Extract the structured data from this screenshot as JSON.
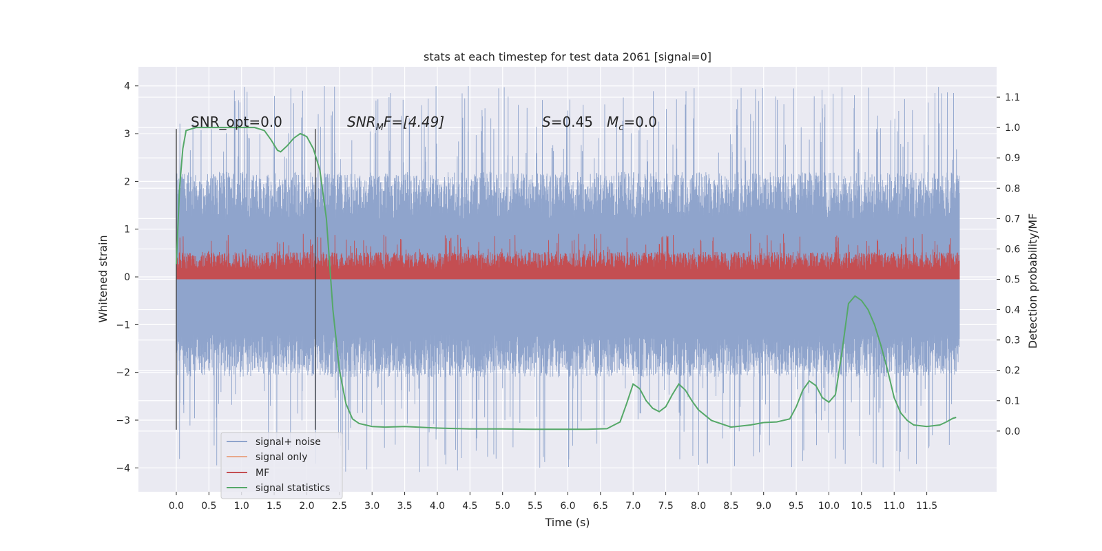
{
  "chart_data": {
    "type": "line",
    "title": "stats at each timestep for test data 2061 [signal=0]",
    "xlabel": "Time (s)",
    "ylabel": "Whitened strain",
    "y2label": "Detection probability/MF",
    "xlim": [
      -0.58,
      12.57
    ],
    "ylim": [
      -4.5,
      4.4
    ],
    "y2lim": [
      -0.2,
      1.2
    ],
    "grid": true,
    "legend_position": "lower-left",
    "x_ticks": [
      "0.0",
      "0.5",
      "1.0",
      "1.5",
      "2.0",
      "2.5",
      "3.0",
      "3.5",
      "4.0",
      "4.5",
      "5.0",
      "5.5",
      "6.0",
      "6.5",
      "7.0",
      "7.5",
      "8.0",
      "8.5",
      "9.0",
      "9.5",
      "10.0",
      "10.5",
      "11.0",
      "11.5"
    ],
    "y_ticks": [
      "4",
      "3",
      "2",
      "1",
      "0",
      "−1",
      "−2",
      "−3",
      "−4"
    ],
    "y2_ticks": [
      "1.1",
      "1.0",
      "0.9",
      "0.8",
      "0.7",
      "0.6",
      "0.5",
      "0.4",
      "0.3",
      "0.2",
      "0.1",
      "0.0"
    ],
    "annotations": {
      "snr_opt": "SNR_opt=0.0",
      "snr_mf_base": "SNR",
      "snr_mf_sub": "M",
      "snr_mf_rest": "F=[4.49]",
      "s_label": "S",
      "s_value": "=0.45",
      "mc_base": "M",
      "mc_sub": "c",
      "mc_value": "=0.0"
    },
    "vertical_lines_x": [
      0.0,
      2.13
    ],
    "series": [
      {
        "name": "signal+ noise",
        "color": "#8fa4cc",
        "axis": "left",
        "style": "noise",
        "x_range": [
          0.0,
          12.0
        ],
        "amplitude_range": [
          -4.1,
          4.0
        ]
      },
      {
        "name": "signal only",
        "color": "#e8a88a",
        "axis": "left",
        "style": "flat",
        "value": 0.0
      },
      {
        "name": "MF",
        "color": "#c44e52",
        "axis": "right",
        "style": "noise",
        "x_range": [
          0.0,
          12.0
        ],
        "amplitude_range": [
          0.5,
          0.65
        ]
      },
      {
        "name": "signal statistics",
        "color": "#55a868",
        "axis": "right",
        "style": "line",
        "x": [
          0.0,
          0.05,
          0.1,
          0.15,
          0.3,
          0.5,
          0.8,
          1.0,
          1.2,
          1.35,
          1.45,
          1.55,
          1.6,
          1.7,
          1.8,
          1.9,
          2.0,
          2.1,
          2.2,
          2.3,
          2.4,
          2.5,
          2.6,
          2.7,
          2.8,
          3.0,
          3.2,
          3.5,
          4.0,
          4.5,
          5.0,
          5.5,
          6.0,
          6.3,
          6.6,
          6.8,
          6.9,
          7.0,
          7.1,
          7.2,
          7.3,
          7.4,
          7.5,
          7.6,
          7.7,
          7.8,
          7.9,
          8.0,
          8.2,
          8.5,
          8.8,
          9.0,
          9.2,
          9.4,
          9.5,
          9.6,
          9.7,
          9.8,
          9.9,
          10.0,
          10.1,
          10.2,
          10.3,
          10.4,
          10.5,
          10.6,
          10.7,
          10.8,
          10.9,
          11.0,
          11.1,
          11.2,
          11.3,
          11.5,
          11.7,
          11.8,
          11.9,
          11.95
        ],
        "y": [
          0.55,
          0.8,
          0.93,
          0.99,
          1.0,
          1.0,
          1.0,
          1.0,
          1.0,
          0.99,
          0.96,
          0.925,
          0.92,
          0.94,
          0.965,
          0.98,
          0.97,
          0.93,
          0.86,
          0.7,
          0.4,
          0.2,
          0.09,
          0.04,
          0.025,
          0.015,
          0.013,
          0.015,
          0.01,
          0.007,
          0.007,
          0.006,
          0.006,
          0.006,
          0.008,
          0.03,
          0.09,
          0.155,
          0.14,
          0.1,
          0.075,
          0.064,
          0.08,
          0.12,
          0.155,
          0.135,
          0.1,
          0.07,
          0.035,
          0.013,
          0.02,
          0.028,
          0.03,
          0.04,
          0.08,
          0.135,
          0.165,
          0.15,
          0.11,
          0.095,
          0.12,
          0.26,
          0.42,
          0.445,
          0.43,
          0.4,
          0.35,
          0.28,
          0.2,
          0.11,
          0.06,
          0.035,
          0.02,
          0.015,
          0.02,
          0.03,
          0.042,
          0.045
        ]
      }
    ]
  }
}
